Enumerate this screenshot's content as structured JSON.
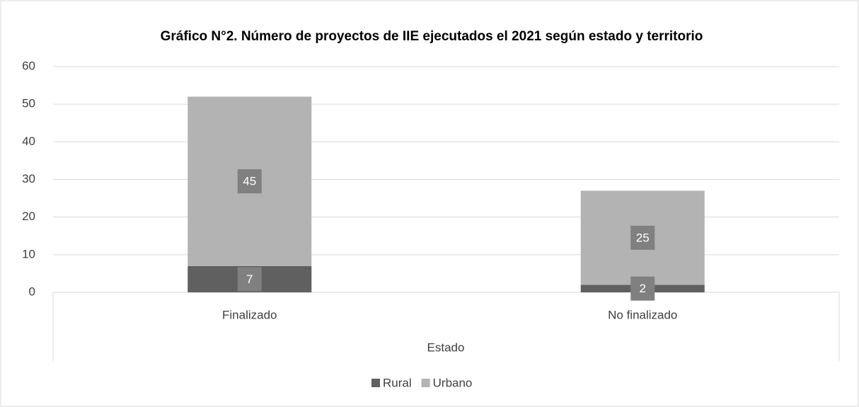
{
  "chart_data": {
    "type": "bar",
    "stacked": true,
    "title": "Gráfico N°2. Número de proyectos de IIE ejecutados el 2021 según estado y territorio",
    "x_label": "Estado",
    "categories": [
      "Finalizado",
      "No finalizado"
    ],
    "series": [
      {
        "name": "Rural",
        "color": "#606060",
        "values": [
          7,
          2
        ]
      },
      {
        "name": "Urbano",
        "color": "#b3b3b3",
        "values": [
          45,
          25
        ]
      }
    ],
    "ylim": [
      0,
      60
    ],
    "yticks": [
      0,
      10,
      20,
      30,
      40,
      50,
      60
    ],
    "grid": true,
    "legend": "bottom"
  }
}
